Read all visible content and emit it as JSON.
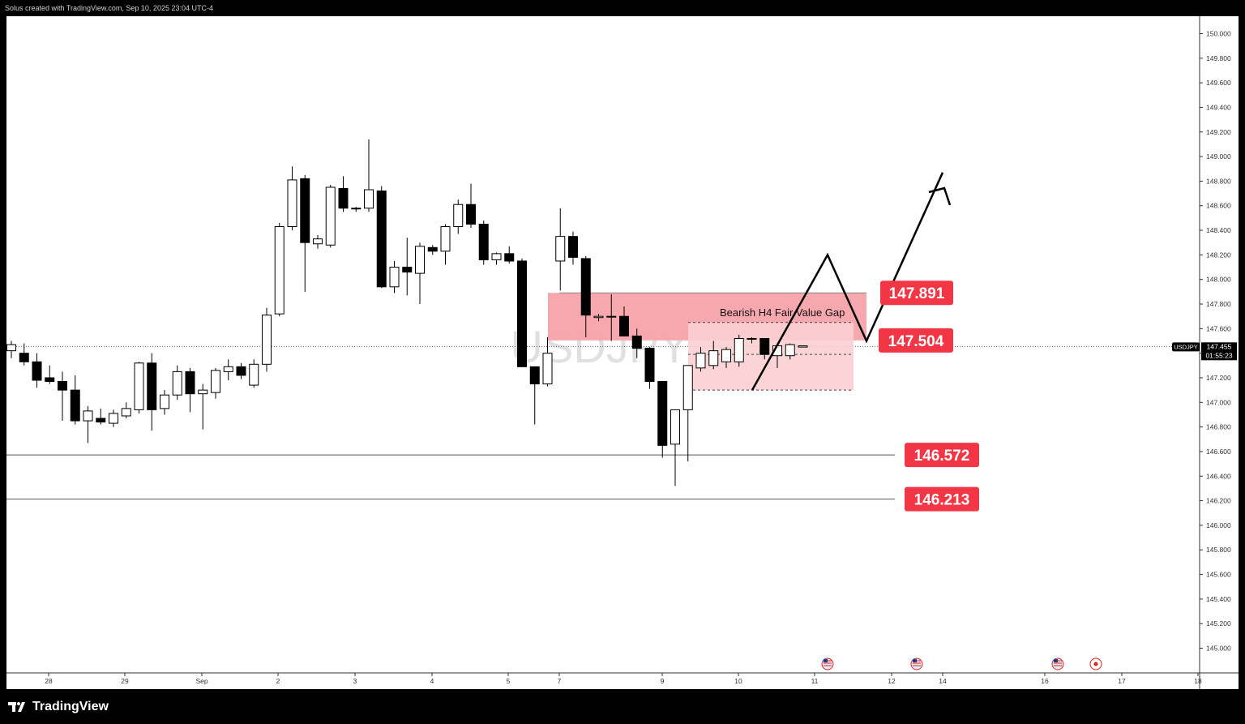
{
  "header": {
    "credit": "Solus created with TradingView.com, Sep 10, 2025 23:04 UTC-4"
  },
  "footer": {
    "brand": "TradingView"
  },
  "colors": {
    "zone": "#f7a3ab",
    "zone_light": "#f9cfd3",
    "label": "#f23645",
    "candle_up": "#ffffff",
    "candle_down": "#000000"
  },
  "chart_data": {
    "type": "candlestick",
    "symbol": "USDJPY",
    "watermark": "USDJPY",
    "ylim": [
      144.85,
      150.15
    ],
    "y_ticks": [
      "150.000",
      "149.800",
      "149.600",
      "149.400",
      "149.200",
      "149.000",
      "148.800",
      "148.600",
      "148.400",
      "148.200",
      "148.000",
      "147.800",
      "147.600",
      "147.400",
      "147.200",
      "147.000",
      "146.800",
      "146.600",
      "146.400",
      "146.200",
      "146.000",
      "145.800",
      "145.600",
      "145.400",
      "145.200",
      "145.000"
    ],
    "x_ticks": [
      "28",
      "29",
      "Sep",
      "2",
      "3",
      "4",
      "5",
      "7",
      "9",
      "10",
      "11",
      "12",
      "14",
      "16",
      "17",
      "18"
    ],
    "last_price": {
      "value": "147.455",
      "countdown": "01:55:23"
    },
    "annotations": {
      "fvg_label": "Bearish H4 Fair Value Gap",
      "levels": [
        "147.891",
        "147.504",
        "146.572",
        "146.213"
      ]
    },
    "candles": [
      [
        147.42,
        147.5,
        147.36,
        147.47
      ],
      [
        147.4,
        147.48,
        147.3,
        147.33
      ],
      [
        147.33,
        147.4,
        147.12,
        147.18
      ],
      [
        147.2,
        147.3,
        147.15,
        147.17
      ],
      [
        147.17,
        147.25,
        146.85,
        147.1
      ],
      [
        147.1,
        147.22,
        146.82,
        146.85
      ],
      [
        146.85,
        146.97,
        146.67,
        146.93
      ],
      [
        146.87,
        146.95,
        146.82,
        146.84
      ],
      [
        146.83,
        146.94,
        146.8,
        146.91
      ],
      [
        146.89,
        147.0,
        146.87,
        146.95
      ],
      [
        146.94,
        147.33,
        146.91,
        147.32
      ],
      [
        147.32,
        147.4,
        146.77,
        146.94
      ],
      [
        146.95,
        147.1,
        146.9,
        147.06
      ],
      [
        147.06,
        147.3,
        147.02,
        147.25
      ],
      [
        147.25,
        147.28,
        146.92,
        147.07
      ],
      [
        147.07,
        147.15,
        146.78,
        147.1
      ],
      [
        147.08,
        147.28,
        147.03,
        147.26
      ],
      [
        147.25,
        147.35,
        147.18,
        147.29
      ],
      [
        147.29,
        147.32,
        147.19,
        147.22
      ],
      [
        147.14,
        147.35,
        147.12,
        147.31
      ],
      [
        147.31,
        147.77,
        147.25,
        147.71
      ],
      [
        147.72,
        148.46,
        147.7,
        148.43
      ],
      [
        148.43,
        148.92,
        148.4,
        148.81
      ],
      [
        148.82,
        148.85,
        147.9,
        148.3
      ],
      [
        148.29,
        148.36,
        148.25,
        148.33
      ],
      [
        148.28,
        148.77,
        148.26,
        148.75
      ],
      [
        148.74,
        148.84,
        148.55,
        148.58
      ],
      [
        148.58,
        148.59,
        148.55,
        148.58
      ],
      [
        148.58,
        149.14,
        148.55,
        148.73
      ],
      [
        148.72,
        148.76,
        147.93,
        147.94
      ],
      [
        147.94,
        148.15,
        147.89,
        148.1
      ],
      [
        148.1,
        148.34,
        147.87,
        148.06
      ],
      [
        148.05,
        148.3,
        147.8,
        148.27
      ],
      [
        148.26,
        148.28,
        148.2,
        148.23
      ],
      [
        148.23,
        148.45,
        148.12,
        148.43
      ],
      [
        148.43,
        148.65,
        148.37,
        148.61
      ],
      [
        148.61,
        148.78,
        148.42,
        148.45
      ],
      [
        148.45,
        148.48,
        148.12,
        148.16
      ],
      [
        148.16,
        148.22,
        148.12,
        148.21
      ],
      [
        148.21,
        148.27,
        148.13,
        148.15
      ],
      [
        148.15,
        148.17,
        147.3,
        147.29
      ],
      [
        147.29,
        147.29,
        146.82,
        147.15
      ],
      [
        147.15,
        147.53,
        147.13,
        147.4
      ],
      [
        148.15,
        148.58,
        147.91,
        148.35
      ],
      [
        148.35,
        148.39,
        148.12,
        148.18
      ],
      [
        148.17,
        148.19,
        147.53,
        147.71
      ],
      [
        147.69,
        147.72,
        147.66,
        147.7
      ],
      [
        147.7,
        147.88,
        147.5,
        147.7
      ],
      [
        147.7,
        147.78,
        147.58,
        147.54
      ],
      [
        147.54,
        147.6,
        147.36,
        147.44
      ],
      [
        147.44,
        147.45,
        147.11,
        147.17
      ],
      [
        147.17,
        147.17,
        146.55,
        146.65
      ],
      [
        146.66,
        146.94,
        146.32,
        146.94
      ],
      [
        146.94,
        147.3,
        146.52,
        147.3
      ],
      [
        147.28,
        147.45,
        147.25,
        147.4
      ],
      [
        147.3,
        147.5,
        147.27,
        147.42
      ],
      [
        147.33,
        147.45,
        147.28,
        147.43
      ],
      [
        147.33,
        147.55,
        147.29,
        147.52
      ],
      [
        147.52,
        147.53,
        147.48,
        147.52
      ],
      [
        147.52,
        147.52,
        147.35,
        147.39
      ],
      [
        147.38,
        147.48,
        147.28,
        147.46
      ],
      [
        147.38,
        147.48,
        147.35,
        147.47
      ],
      [
        147.45,
        147.45,
        147.45,
        147.46
      ]
    ]
  }
}
